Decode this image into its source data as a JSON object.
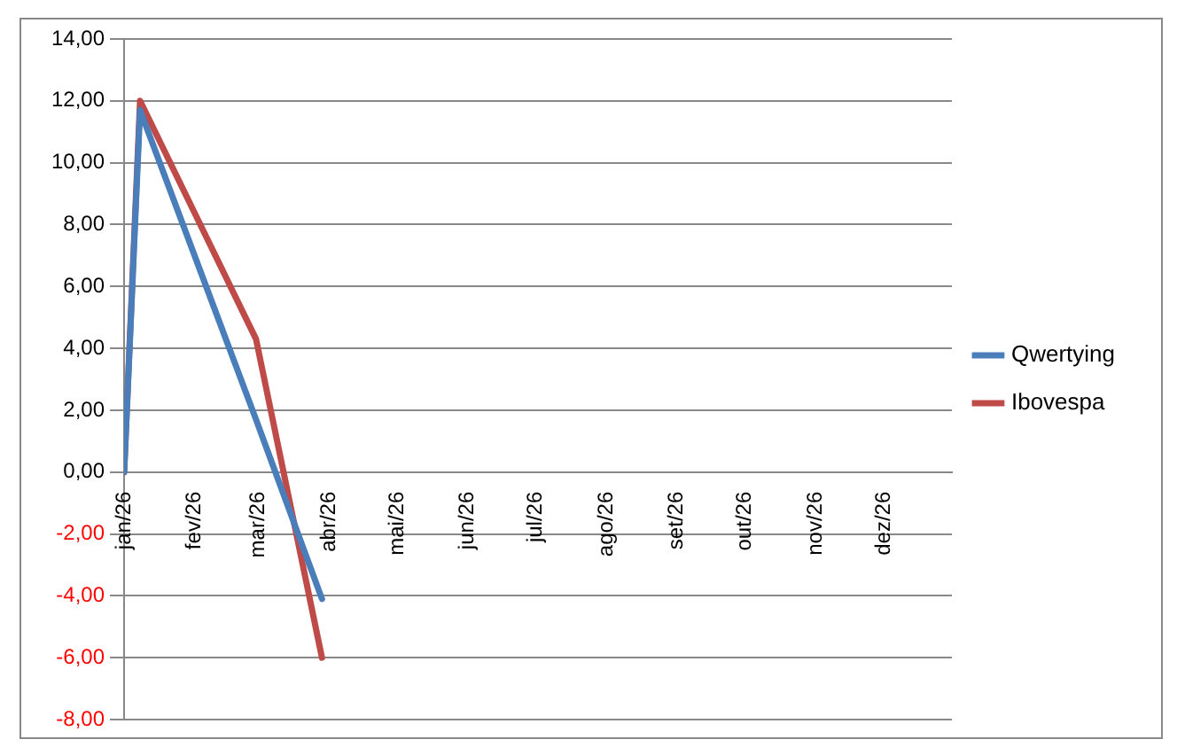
{
  "chart_data": {
    "type": "line",
    "x": [
      "2026-01-01",
      "2026-01-08",
      "2026-02-28",
      "2026-03-29"
    ],
    "series": [
      {
        "name": "Qwertying",
        "color": "#4a7ebb",
        "values": [
          0,
          11.7,
          1.7,
          -4.1
        ]
      },
      {
        "name": "Ibovespa",
        "color": "#be4b48",
        "values": [
          0,
          12,
          4.3,
          -6
        ]
      }
    ],
    "xlim": [
      "2026-01-01",
      "2026-12-31"
    ],
    "xticks": [
      {
        "value": "2026-01-01",
        "label": "jan/26"
      },
      {
        "value": "2026-02-01",
        "label": "fev/26"
      },
      {
        "value": "2026-03-01",
        "label": "mar/26"
      },
      {
        "value": "2026-04-01",
        "label": "abr/26"
      },
      {
        "value": "2026-05-01",
        "label": "mai/26"
      },
      {
        "value": "2026-06-01",
        "label": "jun/26"
      },
      {
        "value": "2026-07-01",
        "label": "jul/26"
      },
      {
        "value": "2026-08-01",
        "label": "ago/26"
      },
      {
        "value": "2026-09-01",
        "label": "set/26"
      },
      {
        "value": "2026-10-01",
        "label": "out/26"
      },
      {
        "value": "2026-11-01",
        "label": "nov/26"
      },
      {
        "value": "2026-12-01",
        "label": "dez/26"
      }
    ],
    "ylim": [
      -8,
      14
    ],
    "yticks": [
      {
        "value": -8,
        "label": "-8,00"
      },
      {
        "value": -6,
        "label": "-6,00"
      },
      {
        "value": -4,
        "label": "-4,00"
      },
      {
        "value": -2,
        "label": "-2,00"
      },
      {
        "value": 0,
        "label": "0,00"
      },
      {
        "value": 2,
        "label": "2,00"
      },
      {
        "value": 4,
        "label": "4,00"
      },
      {
        "value": 6,
        "label": "6,00"
      },
      {
        "value": 8,
        "label": "8,00"
      },
      {
        "value": 10,
        "label": "10,00"
      },
      {
        "value": 12,
        "label": "12,00"
      },
      {
        "value": 14,
        "label": "14,00"
      }
    ],
    "grid": "y",
    "legend": "right",
    "marker": "none",
    "line_style": "solid"
  }
}
